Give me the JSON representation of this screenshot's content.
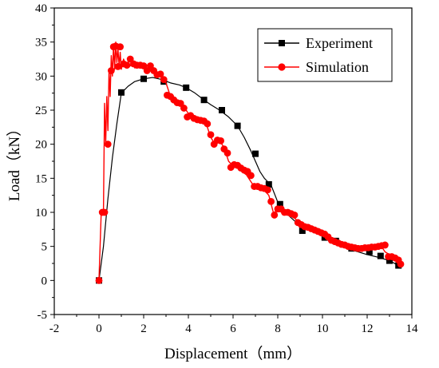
{
  "chart_data": {
    "type": "line",
    "title": "",
    "xlabel": "Displacement（mm）",
    "ylabel": "Load（kN）",
    "xlim": [
      -2,
      14
    ],
    "ylim": [
      -5,
      40
    ],
    "xticks": [
      -2,
      0,
      2,
      4,
      6,
      8,
      10,
      12,
      14
    ],
    "yticks": [
      -5,
      0,
      5,
      10,
      15,
      20,
      25,
      30,
      35,
      40
    ],
    "grid": false,
    "legend": "top-right",
    "series": [
      {
        "name": "Experiment",
        "color": "#000000",
        "marker": "square",
        "x": [
          0.0,
          0.2,
          0.4,
          0.6,
          0.8,
          1.0,
          1.3,
          1.6,
          2.0,
          2.4,
          2.8,
          3.2,
          3.6,
          3.9,
          4.3,
          4.7,
          5.0,
          5.4,
          5.8,
          6.2,
          6.5,
          6.8,
          7.0,
          7.2,
          7.4,
          7.7,
          8.0,
          8.5,
          9.0,
          9.5,
          10.0,
          10.5,
          11.0,
          11.5,
          12.0,
          12.5,
          13.0,
          13.4
        ],
        "y": [
          0.0,
          5.0,
          12.0,
          18.0,
          23.0,
          27.5,
          28.5,
          29.2,
          29.6,
          29.8,
          29.5,
          29.0,
          28.7,
          28.3,
          27.5,
          26.5,
          25.8,
          25.0,
          24.0,
          22.7,
          21.0,
          19.0,
          17.5,
          16.0,
          15.0,
          14.0,
          11.5,
          9.5,
          8.0,
          7.3,
          6.5,
          5.8,
          5.0,
          4.3,
          3.8,
          3.4,
          2.9,
          2.2
        ],
        "marker_x": [
          0.0,
          1.0,
          2.0,
          2.9,
          3.9,
          4.7,
          5.5,
          6.2,
          7.0,
          7.6,
          8.1,
          9.1,
          10.1,
          10.6,
          11.3,
          12.1,
          12.6,
          13.0,
          13.4
        ],
        "marker_y": [
          0.0,
          27.6,
          29.6,
          29.2,
          28.3,
          26.5,
          25.0,
          22.7,
          18.6,
          14.1,
          11.2,
          7.3,
          6.3,
          5.8,
          4.7,
          4.2,
          3.6,
          2.9,
          2.2
        ]
      },
      {
        "name": "Simulation",
        "color": "#ff0000",
        "marker": "circle",
        "x": [
          0.0,
          0.1,
          0.2,
          0.25,
          0.3,
          0.35,
          0.4,
          0.45,
          0.5,
          0.55,
          0.6,
          0.65,
          0.7,
          0.75,
          0.8,
          0.85,
          0.9,
          0.95,
          1.0,
          1.1,
          1.2,
          1.3,
          1.4,
          1.5,
          1.6,
          1.8,
          2.0,
          2.2,
          2.4,
          2.6,
          2.8,
          3.0,
          3.2,
          3.4,
          3.6,
          3.8,
          4.0,
          4.2,
          4.4,
          4.6,
          4.8,
          5.0,
          5.2,
          5.4,
          5.6,
          5.8,
          6.0,
          6.2,
          6.4,
          6.6,
          6.8,
          7.0,
          7.2,
          7.4,
          7.6,
          7.8,
          8.0,
          8.2,
          8.4,
          8.6,
          8.8,
          9.0,
          9.2,
          9.4,
          9.6,
          9.8,
          10.0,
          10.2,
          10.4,
          10.6,
          10.8,
          11.0,
          11.2,
          11.4,
          11.6,
          11.8,
          12.0,
          12.2,
          12.4,
          12.6,
          12.8,
          13.0,
          13.2,
          13.4,
          13.5
        ],
        "y": [
          0.0,
          10.0,
          10.0,
          26.0,
          20.0,
          27.0,
          22.0,
          31.0,
          27.0,
          33.0,
          30.0,
          34.5,
          31.0,
          35.0,
          32.0,
          34.0,
          31.5,
          33.5,
          31.0,
          32.5,
          31.5,
          32.0,
          31.5,
          31.8,
          31.2,
          31.5,
          31.3,
          31.0,
          30.8,
          30.2,
          29.8,
          29.0,
          27.0,
          26.8,
          26.0,
          25.5,
          24.5,
          24.0,
          23.5,
          23.5,
          23.0,
          21.0,
          20.0,
          20.5,
          19.5,
          17.5,
          16.8,
          16.5,
          16.0,
          15.5,
          14.5,
          13.5,
          13.4,
          13.2,
          12.5,
          10.0,
          10.2,
          10.0,
          9.8,
          9.6,
          9.0,
          8.3,
          8.0,
          7.6,
          7.4,
          7.2,
          7.0,
          6.6,
          6.2,
          5.9,
          5.6,
          5.4,
          5.2,
          5.0,
          4.9,
          4.8,
          4.7,
          4.8,
          4.9,
          5.2,
          4.2,
          3.8,
          3.5,
          2.8,
          2.4
        ],
        "marker_x": [
          0.0,
          0.15,
          0.25,
          0.4,
          0.55,
          0.65,
          0.75,
          0.85,
          0.95,
          1.1,
          1.25,
          1.4,
          1.55,
          1.7,
          1.85,
          2.0,
          2.15,
          2.3,
          2.45,
          2.6,
          2.75,
          2.9,
          3.05,
          3.2,
          3.35,
          3.5,
          3.65,
          3.8,
          3.95,
          4.1,
          4.25,
          4.4,
          4.55,
          4.7,
          4.85,
          5.0,
          5.15,
          5.3,
          5.45,
          5.6,
          5.75,
          5.9,
          6.05,
          6.2,
          6.35,
          6.5,
          6.65,
          6.8,
          6.95,
          7.1,
          7.25,
          7.4,
          7.55,
          7.7,
          7.85,
          8.0,
          8.15,
          8.3,
          8.45,
          8.6,
          8.75,
          8.9,
          9.05,
          9.2,
          9.35,
          9.5,
          9.65,
          9.8,
          9.95,
          10.1,
          10.25,
          10.4,
          10.55,
          10.7,
          10.85,
          11.0,
          11.15,
          11.3,
          11.45,
          11.6,
          11.75,
          11.9,
          12.05,
          12.2,
          12.35,
          12.5,
          12.65,
          12.8,
          12.95,
          13.1,
          13.25,
          13.4,
          13.5
        ],
        "marker_y": [
          0.0,
          10.0,
          10.0,
          20.0,
          30.8,
          34.3,
          34.4,
          31.4,
          34.3,
          31.8,
          31.6,
          32.5,
          31.8,
          31.6,
          31.6,
          31.5,
          30.8,
          31.5,
          30.8,
          30.2,
          30.3,
          29.5,
          27.2,
          27.0,
          26.5,
          26.1,
          26.0,
          25.3,
          24.0,
          24.2,
          23.8,
          23.6,
          23.5,
          23.4,
          23.0,
          21.4,
          20.0,
          20.6,
          20.5,
          19.3,
          18.7,
          16.6,
          17.0,
          16.9,
          16.5,
          16.2,
          16.0,
          15.4,
          13.8,
          13.8,
          13.6,
          13.5,
          13.3,
          11.6,
          9.6,
          10.5,
          10.5,
          10.0,
          10.0,
          9.8,
          9.6,
          8.5,
          8.2,
          7.9,
          7.8,
          7.6,
          7.4,
          7.2,
          7.0,
          6.8,
          6.4,
          5.9,
          5.7,
          5.5,
          5.3,
          5.2,
          5.0,
          4.9,
          4.8,
          4.7,
          4.7,
          4.8,
          4.8,
          4.9,
          4.9,
          5.0,
          5.1,
          5.2,
          3.5,
          3.5,
          3.3,
          3.0,
          2.4
        ]
      }
    ]
  }
}
